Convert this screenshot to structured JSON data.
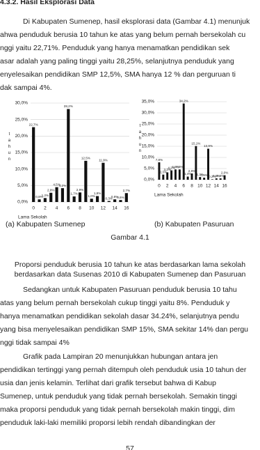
{
  "header": {
    "title": "4.3.2.  Hasil Eksplorasi Data"
  },
  "paragraphs": [
    [
      "Di Kabupaten Sumenep, hasil eksplorasi data (Gambar 4.1) menunjuk",
      "ahwa penduduk berusia 10 tahun ke atas yang belum pernah bersekolah cu",
      "nggi yaitu 22,71%. Penduduk yang hanya menamatkan pendidikan sek",
      "asar adalah yang paling tinggi yaitu 28,25%, selanjutnya penduduk yang",
      "enyelesaikan pendidikan SMP 12,5%, SMA hanya 12 % dan perguruan ti",
      "dak sampai 4%."
    ],
    [
      "Sedangkan untuk Kabupaten Pasuruan penduduk berusia 10 tahu",
      "atas yang belum pernah bersekolah cukup tinggi yaitu 8%. Penduduk y",
      "hanya menamatkan pendidikan sekolah dasar 34.24%, selanjutnya pendu",
      "yang bisa menyelesaikan pendidikan SMP 15%, SMA sekitar 14% dan pergu",
      "nggi tidak sampai 4%"
    ],
    [
      "Grafik pada Lampiran 20 menunjukkan hubungan antara jen",
      "pendidikan tertinggi yang pernah ditempuh oleh penduduk usia 10 tahun der",
      "usia dan jenis kelamin. Terlihat dari grafik tersebut bahwa di Kabup",
      "Sumenep, untuk penduduk yang tidak pernah bersekolah. Semakin tinggi",
      "maka proporsi penduduk yang tidak pernah bersekolah makin tinggi, dim",
      "penduduk laki-laki memiliki proporsi lebih rendah dibandingkan der"
    ]
  ],
  "chart_data": [
    {
      "type": "bar",
      "subcaption": "(a)  Kabupaten Sumenep",
      "xlabel": "Lama Sekolah",
      "ylabel": "tahun",
      "color": "#111111",
      "categories": [
        "0",
        null,
        "2",
        null,
        "4",
        null,
        "6",
        null,
        "8",
        null,
        "10",
        null,
        "12",
        null,
        "14",
        null,
        "16"
      ],
      "values": [
        22.7,
        0.8,
        1.2,
        2.8,
        4.5,
        4.2,
        28.2,
        1.7,
        2.9,
        12.5,
        1.0,
        1.8,
        11.9,
        0.3,
        0.8,
        0.6,
        2.7
      ],
      "value_labels": [
        "22,7%",
        "0,8%",
        "1,2%",
        "2,8%",
        "4,5%",
        "4,2%",
        "28,2%",
        "1,7%",
        "2,9%",
        "12,5%",
        "1,0%",
        "1,8%",
        "11,9%",
        "0,3%",
        "0,8%",
        "0,6%",
        "2,7%"
      ],
      "ylim": [
        0,
        30
      ],
      "yticks": [
        {
          "value": 0,
          "label": "0,0%"
        },
        {
          "value": 5,
          "label": "5,0%"
        },
        {
          "value": 10,
          "label": "10,0%"
        },
        {
          "value": 15,
          "label": "15,0%"
        },
        {
          "value": 20,
          "label": "20,0%"
        },
        {
          "value": 25,
          "label": "25,0%"
        },
        {
          "value": 30,
          "label": "30,0%"
        }
      ],
      "grid": true
    },
    {
      "type": "bar",
      "subcaption": "(b) Kabupaten Pasuruan",
      "xlabel": "Lama Sekolah",
      "ylabel": "tahun",
      "color": "#111111",
      "categories": [
        "0",
        null,
        "2",
        null,
        "4",
        null,
        "6",
        null,
        "8",
        null,
        "10",
        null,
        "12",
        null,
        "14",
        null,
        "16"
      ],
      "values": [
        7.8,
        2.3,
        3.3,
        4.2,
        4.6,
        4.6,
        34.2,
        1.4,
        2.8,
        15.1,
        1.2,
        0.9,
        13.9,
        0.2,
        0.6,
        0.6,
        2.0
      ],
      "value_labels": [
        "7,8%",
        "2,3%",
        "3,3%",
        "4,2%",
        "4,6%",
        "4,6%",
        "34,2%",
        "1,4%",
        "2,8%",
        "15,1%",
        "1,2%",
        "0,9%",
        "13,9%",
        "0,2%",
        "0,6%",
        "0,6%",
        "2,0%"
      ],
      "ylim": [
        0,
        35
      ],
      "yticks": [
        {
          "value": 0,
          "label": "0,0%"
        },
        {
          "value": 5,
          "label": "5,0%"
        },
        {
          "value": 10,
          "label": "10,0%"
        },
        {
          "value": 15,
          "label": "15,0%"
        },
        {
          "value": 20,
          "label": "20,0%"
        },
        {
          "value": 25,
          "label": "25,0%"
        },
        {
          "value": 30,
          "label": "30,0%"
        },
        {
          "value": 35,
          "label": "35,0%"
        }
      ],
      "grid": true
    }
  ],
  "figure": {
    "number": "Gambar 4.1",
    "caption": [
      "Proporsi penduduk berusia 10 tahun ke atas berdasarkan lama sekolah",
      "berdasarkan data Susenas 2010 di Kabupaten Sumenep dan  Pasuruan"
    ]
  },
  "page_number": "57"
}
